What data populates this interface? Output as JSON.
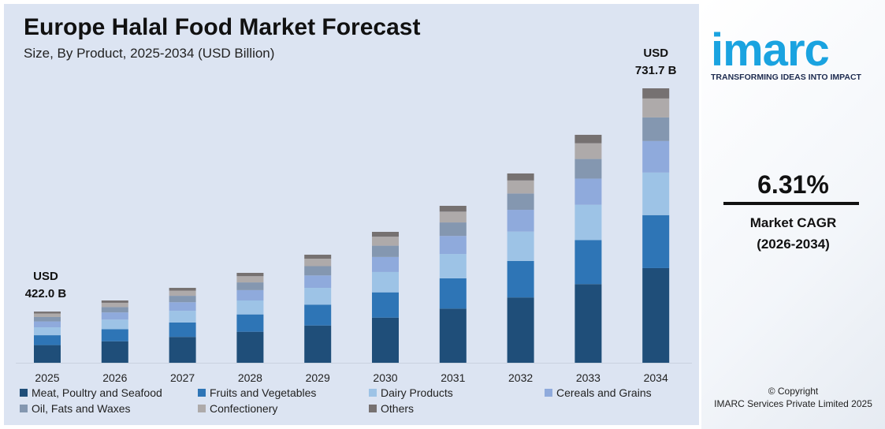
{
  "chart_data": {
    "type": "bar",
    "stacked": true,
    "title": "Europe Halal Food Market Forecast",
    "subtitle": "Size, By Product, 2025-2034 (USD Billion)",
    "categories": [
      "2025",
      "2026",
      "2027",
      "2028",
      "2029",
      "2030",
      "2031",
      "2032",
      "2033",
      "2034"
    ],
    "totals": [
      422.0,
      437.4,
      454.9,
      475.7,
      500.9,
      532.6,
      568.7,
      613.6,
      667.2,
      731.7
    ],
    "total_labels": {
      "first": [
        "USD",
        "422.0 B"
      ],
      "last": [
        "USD",
        "731.7 B"
      ]
    },
    "series": [
      {
        "name": "Meat, Poultry and Seafood",
        "color": "#1f4e79",
        "values": [
          145.6,
          150.9,
          156.9,
          164.1,
          172.8,
          183.7,
          196.2,
          211.7,
          230.2,
          252.4
        ]
      },
      {
        "name": "Fruits and Vegetables",
        "color": "#2e75b6",
        "values": [
          81.4,
          84.4,
          87.8,
          91.8,
          96.7,
          102.8,
          109.8,
          118.4,
          128.8,
          141.2
        ]
      },
      {
        "name": "Dairy Products",
        "color": "#9dc3e6",
        "values": [
          65.4,
          67.8,
          70.5,
          73.7,
          77.6,
          82.6,
          88.1,
          95.1,
          103.4,
          113.4
        ]
      },
      {
        "name": "Cereals and Grains",
        "color": "#8faadc",
        "values": [
          48.5,
          50.3,
          52.3,
          54.7,
          57.6,
          61.2,
          65.4,
          70.6,
          76.7,
          84.1
        ]
      },
      {
        "name": "Oil, Fats and Waxes",
        "color": "#8497b0",
        "values": [
          36.3,
          37.6,
          39.1,
          40.9,
          43.1,
          45.8,
          48.9,
          52.8,
          57.4,
          62.9
        ]
      },
      {
        "name": "Confectionery",
        "color": "#aeaaaa",
        "values": [
          29.1,
          30.2,
          31.4,
          32.8,
          34.6,
          36.7,
          39.2,
          42.3,
          46.0,
          50.5
        ]
      },
      {
        "name": "Others",
        "color": "#767171",
        "values": [
          15.6,
          16.2,
          16.8,
          17.6,
          18.5,
          19.7,
          21.0,
          22.7,
          24.7,
          27.1
        ]
      }
    ],
    "grid": false,
    "legend": "bottom"
  },
  "brand": {
    "logo": "imarc",
    "tagline": "TRANSFORMING IDEAS INTO IMPACT"
  },
  "cagr": {
    "value": "6.31%",
    "label": "Market CAGR",
    "period": "(2026-2034)"
  },
  "copyright": {
    "line1": "© Copyright",
    "line2": "IMARC Services Private Limited 2025"
  }
}
